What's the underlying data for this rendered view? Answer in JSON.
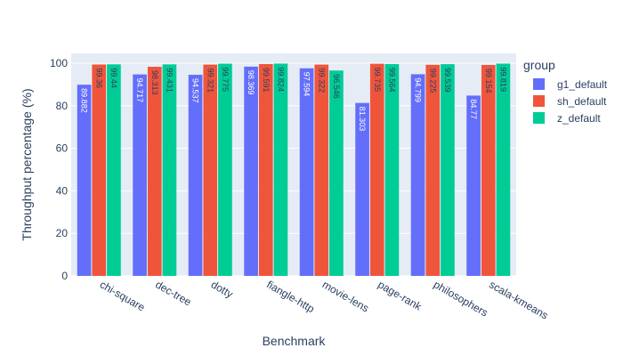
{
  "chart_data": {
    "type": "bar",
    "barmode": "group",
    "categories": [
      "chi-square",
      "dec-tree",
      "dotty",
      "fiangle-http",
      "movie-lens",
      "page-rank",
      "philosophers",
      "scala-kmeans"
    ],
    "series": [
      {
        "name": "g1_default",
        "color": "#636efa",
        "label_color": "#ffffff",
        "values": [
          89.882,
          94.717,
          94.537,
          98.369,
          97.594,
          81.303,
          94.799,
          84.77
        ]
      },
      {
        "name": "sh_default",
        "color": "#ef553b",
        "label_color": "#2a3f5f",
        "values": [
          99.36,
          98.313,
          99.321,
          99.591,
          99.322,
          99.735,
          99.225,
          99.154
        ]
      },
      {
        "name": "z_default",
        "color": "#00cc96",
        "label_color": "#2a3f5f",
        "values": [
          99.44,
          99.431,
          99.775,
          99.824,
          96.546,
          99.564,
          99.539,
          99.819
        ]
      }
    ],
    "xlabel": "Benchmark",
    "ylabel": "Throughput percentage (%)",
    "ylim": [
      0,
      104.6
    ],
    "yticks": [
      0,
      20,
      40,
      60,
      80,
      100
    ],
    "legend_title": "group",
    "legend_position": "right",
    "grid": true,
    "plot_background": "#e5ecf6"
  }
}
